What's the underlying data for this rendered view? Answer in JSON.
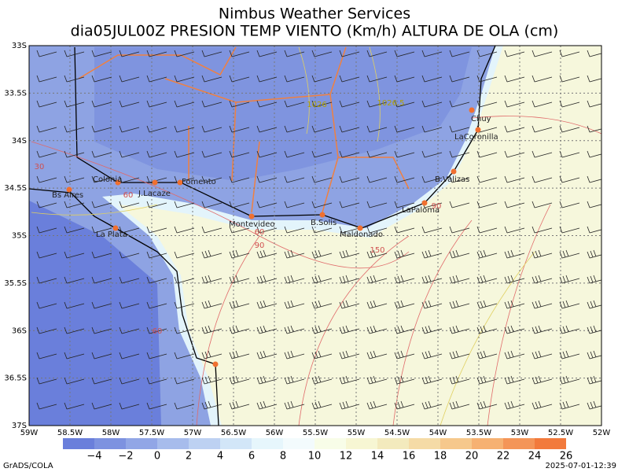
{
  "header": {
    "title": "Nimbus Weather Services",
    "subtitle": "dia05JUL00Z PRESION TEMP VIENTO (Km/h) ALTURA DE OLA (cm)"
  },
  "map": {
    "lat_labels": [
      "33S",
      "33.5S",
      "34S",
      "34.5S",
      "35S",
      "35.5S",
      "36S",
      "36.5S",
      "37S"
    ],
    "lon_labels": [
      "59W",
      "58.5W",
      "58W",
      "57.5W",
      "57W",
      "56.5W",
      "56W",
      "55.5W",
      "55W",
      "54.5W",
      "54W",
      "53.5W",
      "53W",
      "52.5W",
      "52W"
    ],
    "places": [
      "Colonia",
      "Bs Aires",
      "J.Lacaze",
      "Fomento",
      "La Plata",
      "Montevideo",
      "B.Solis",
      "Maldonado",
      "LaPaloma",
      "B.Valizas",
      "LaCoronilla",
      "Chuy"
    ],
    "contour_labels": [
      1026,
      1026.5,
      30,
      60,
      60,
      60,
      90,
      90,
      150
    ]
  },
  "colorbar": {
    "ticks": [
      {
        "value": -4,
        "label": "−4"
      },
      {
        "value": -2,
        "label": "−2"
      },
      0,
      2,
      4,
      6,
      8,
      10,
      12,
      14,
      16,
      18,
      20,
      22,
      24,
      26
    ]
  },
  "footer": {
    "left": "GrADS/COLA",
    "right": "2025-07-01-12:39"
  }
}
